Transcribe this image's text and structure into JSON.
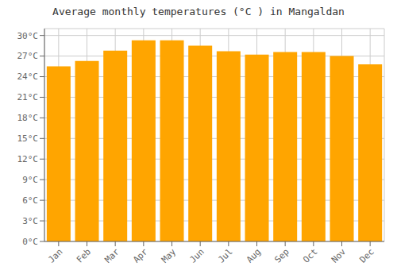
{
  "chart_data": {
    "type": "bar",
    "title": "Average monthly temperatures (°C ) in Mangaldan",
    "categories": [
      "Jan",
      "Feb",
      "Mar",
      "Apr",
      "May",
      "Jun",
      "Jul",
      "Aug",
      "Sep",
      "Oct",
      "Nov",
      "Dec"
    ],
    "values": [
      25.5,
      26.3,
      27.8,
      29.3,
      29.3,
      28.5,
      27.7,
      27.2,
      27.6,
      27.6,
      27.0,
      25.8
    ],
    "color": "#FFA500",
    "ylim": [
      0,
      31
    ],
    "yticks": [
      {
        "value": 0,
        "label": "0°C"
      },
      {
        "value": 3,
        "label": "3°C"
      },
      {
        "value": 6,
        "label": "6°C"
      },
      {
        "value": 9,
        "label": "9°C"
      },
      {
        "value": 12,
        "label": "12°C"
      },
      {
        "value": 15,
        "label": "15°C"
      },
      {
        "value": 18,
        "label": "18°C"
      },
      {
        "value": 21,
        "label": "21°C"
      },
      {
        "value": 24,
        "label": "24°C"
      },
      {
        "value": 27,
        "label": "27°C"
      },
      {
        "value": 30,
        "label": "30°C"
      }
    ],
    "grid": true
  }
}
